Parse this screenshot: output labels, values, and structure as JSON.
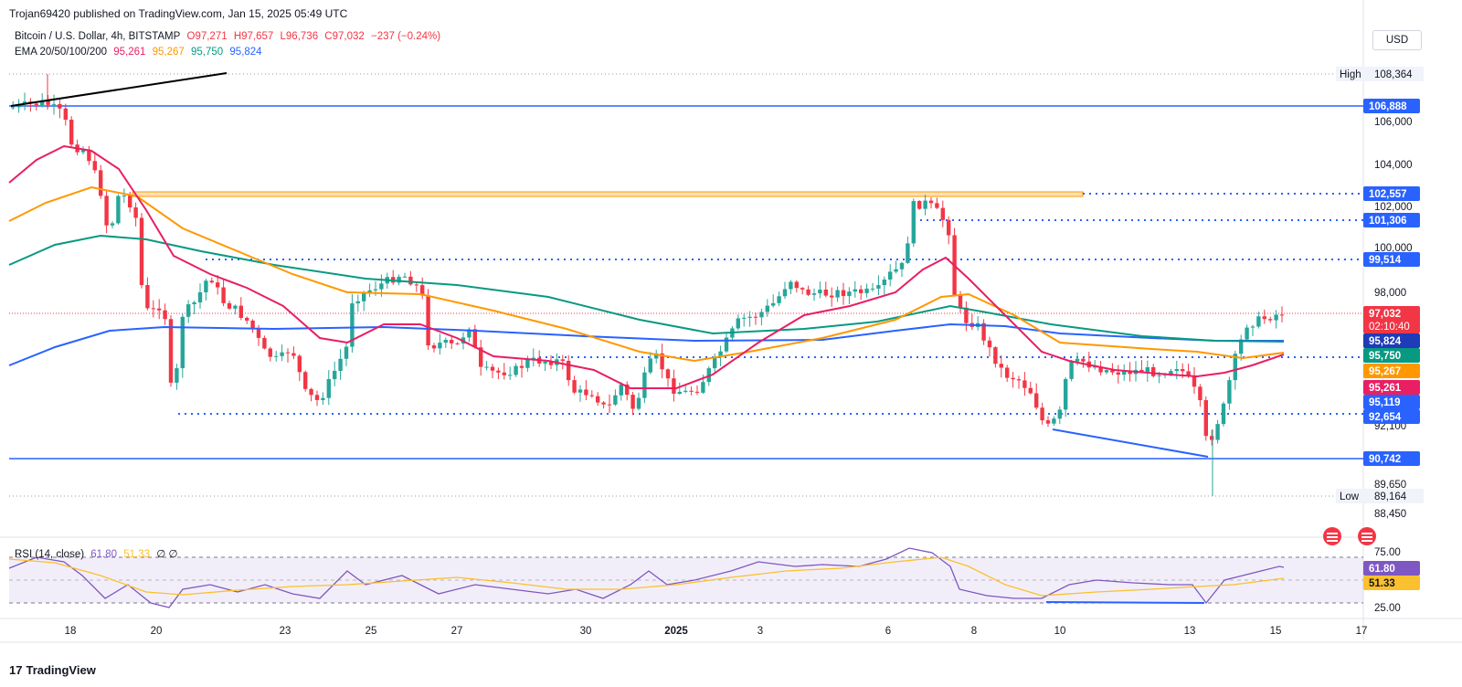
{
  "header": {
    "published": "Trojan69420 published on TradingView.com, Jan 15, 2025 05:49 UTC",
    "symbol": "Bitcoin / U.S. Dollar, 4h, BITSTAMP",
    "open": "O97,271",
    "high": "H97,657",
    "low": "L96,736",
    "close": "C97,032",
    "change": "−237 (−0.24%)",
    "ema_label": "EMA 20/50/100/200",
    "ema20": "95,261",
    "ema50": "95,267",
    "ema100": "95,750",
    "ema200": "95,824"
  },
  "currency": "USD",
  "footer": {
    "brand": "TradingView"
  },
  "colors": {
    "up": "#26a69a",
    "down": "#f23645",
    "ema20": "#e91e63",
    "ema50": "#ff9800",
    "ema100": "#089981",
    "ema200": "#2962ff",
    "level": "#2962ff",
    "rsi": "#7e57c2",
    "rsi_ma": "#fbc02d"
  },
  "chart_data": {
    "type": "candlestick",
    "y_axis_ticks": [
      "106,000",
      "104,000",
      "102,000",
      "100,000",
      "98,000",
      "92,100",
      "89,650",
      "88,450"
    ],
    "ylim": [
      87500,
      110000
    ],
    "price_labels": [
      {
        "text": "High",
        "value": "108,364",
        "y": 108364,
        "style": "plain"
      },
      {
        "text": "",
        "value": "106,888",
        "y": 106888,
        "style": "blue"
      },
      {
        "text": "",
        "value": "102,557",
        "y": 102557,
        "style": "blue"
      },
      {
        "text": "",
        "value": "101,306",
        "y": 101306,
        "style": "blue"
      },
      {
        "text": "",
        "value": "99,514",
        "y": 99514,
        "style": "blue"
      },
      {
        "text": "",
        "value": "97,032",
        "y": 97032,
        "style": "red",
        "sub": "02:10:40"
      },
      {
        "text": "",
        "value": "95,824",
        "y": 95824,
        "style": "navy"
      },
      {
        "text": "",
        "value": "95,750",
        "y": 95750,
        "style": "teal"
      },
      {
        "text": "",
        "value": "95,267",
        "y": 95267,
        "style": "orange"
      },
      {
        "text": "",
        "value": "95,261",
        "y": 95261,
        "style": "pink"
      },
      {
        "text": "",
        "value": "95,119",
        "y": 95119,
        "style": "blue"
      },
      {
        "text": "",
        "value": "92,654",
        "y": 92654,
        "style": "blue"
      },
      {
        "text": "",
        "value": "90,742",
        "y": 90742,
        "style": "blue"
      },
      {
        "text": "Low",
        "value": "89,164",
        "y": 89164,
        "style": "plain"
      }
    ],
    "x_axis_ticks": [
      "18",
      "20",
      "23",
      "25",
      "27",
      "30",
      "2025",
      "3",
      "6",
      "8",
      "10",
      "13",
      "15",
      "17"
    ],
    "horizontal_levels": [
      {
        "y": 106888,
        "style": "solid"
      },
      {
        "y": 90742,
        "style": "solid"
      },
      {
        "y": 101306,
        "style": "dotted"
      },
      {
        "y": 99514,
        "style": "dotted"
      },
      {
        "y": 95119,
        "style": "dotted"
      },
      {
        "y": 92654,
        "style": "dotted"
      },
      {
        "y": 102557,
        "style": "zone"
      }
    ],
    "ema_series": [
      {
        "name": "EMA 20",
        "value": 95261
      },
      {
        "name": "EMA 50",
        "value": 95267
      },
      {
        "name": "EMA 100",
        "value": 95750
      },
      {
        "name": "EMA 200",
        "value": 95824
      }
    ],
    "rsi": {
      "label": "RSI (14, close)",
      "rsi_value": "61.80",
      "ma_value": "51.33",
      "extra": "∅ ∅",
      "ticks": [
        "75.00",
        "25.00"
      ],
      "ylim": [
        20,
        80
      ]
    }
  }
}
